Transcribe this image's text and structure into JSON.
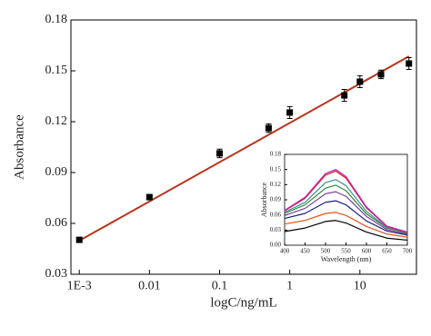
{
  "chart_data": [
    {
      "type": "scatter",
      "x_label": "logC/ng/mL",
      "y_label": "Absorbance",
      "x_log": true,
      "xlim": [
        0.00076,
        64
      ],
      "xticks": [
        {
          "value": 0.001,
          "label": "1E-3"
        },
        0.01,
        0.1,
        1,
        10
      ],
      "ylim": [
        0.03,
        0.18
      ],
      "yticks": [
        0.03,
        0.06,
        0.09,
        0.12,
        0.15,
        0.18
      ],
      "series": [
        {
          "type": "scatter",
          "color": "#000000",
          "x": [
            0.001,
            0.01,
            0.1,
            0.5,
            1,
            6,
            10,
            20,
            50
          ],
          "values": [
            0.0503,
            0.0755,
            0.1013,
            0.1162,
            0.1254,
            0.1355,
            0.1436,
            0.1479,
            0.1543
          ],
          "errors": [
            0.0012,
            0.0012,
            0.0025,
            0.0025,
            0.0035,
            0.0035,
            0.0035,
            0.0025,
            0.0035
          ]
        },
        {
          "type": "line",
          "color": "#b8341b",
          "x": [
            0.001,
            50
          ],
          "values": [
            0.0498,
            0.1586
          ]
        }
      ]
    },
    {
      "type": "line",
      "x_label": "Wavelength (nm)",
      "y_label": "Absorbance",
      "xlim": [
        400,
        700
      ],
      "xticks": [
        400,
        450,
        500,
        550,
        600,
        650,
        700
      ],
      "ylim": [
        0,
        0.18
      ],
      "yticks": [
        {
          "value": 0,
          "label": "0.00"
        },
        0.03,
        0.06,
        0.09,
        0.12,
        0.15,
        0.18
      ],
      "x": [
        400,
        450,
        500,
        525,
        550,
        600,
        650,
        700
      ],
      "series": [
        {
          "color": "#000000",
          "values": [
            0.027,
            0.034,
            0.047,
            0.049,
            0.044,
            0.026,
            0.014,
            0.01
          ]
        },
        {
          "color": "#e8541a",
          "values": [
            0.042,
            0.049,
            0.063,
            0.065,
            0.059,
            0.037,
            0.022,
            0.016
          ]
        },
        {
          "color": "#1a237e",
          "values": [
            0.053,
            0.063,
            0.085,
            0.088,
            0.08,
            0.048,
            0.028,
            0.02
          ]
        },
        {
          "color": "#7b3fa0",
          "values": [
            0.059,
            0.073,
            0.102,
            0.106,
            0.097,
            0.057,
            0.031,
            0.022
          ]
        },
        {
          "color": "#2e8b3a",
          "values": [
            0.063,
            0.08,
            0.113,
            0.119,
            0.108,
            0.062,
            0.034,
            0.024
          ]
        },
        {
          "color": "#3a8f9c",
          "values": [
            0.065,
            0.085,
            0.124,
            0.13,
            0.118,
            0.067,
            0.035,
            0.025
          ]
        },
        {
          "color": "#d62020",
          "values": [
            0.068,
            0.093,
            0.139,
            0.147,
            0.133,
            0.074,
            0.037,
            0.025
          ]
        },
        {
          "color": "#c020c0",
          "values": [
            0.069,
            0.095,
            0.142,
            0.15,
            0.136,
            0.076,
            0.038,
            0.026
          ]
        }
      ]
    }
  ]
}
